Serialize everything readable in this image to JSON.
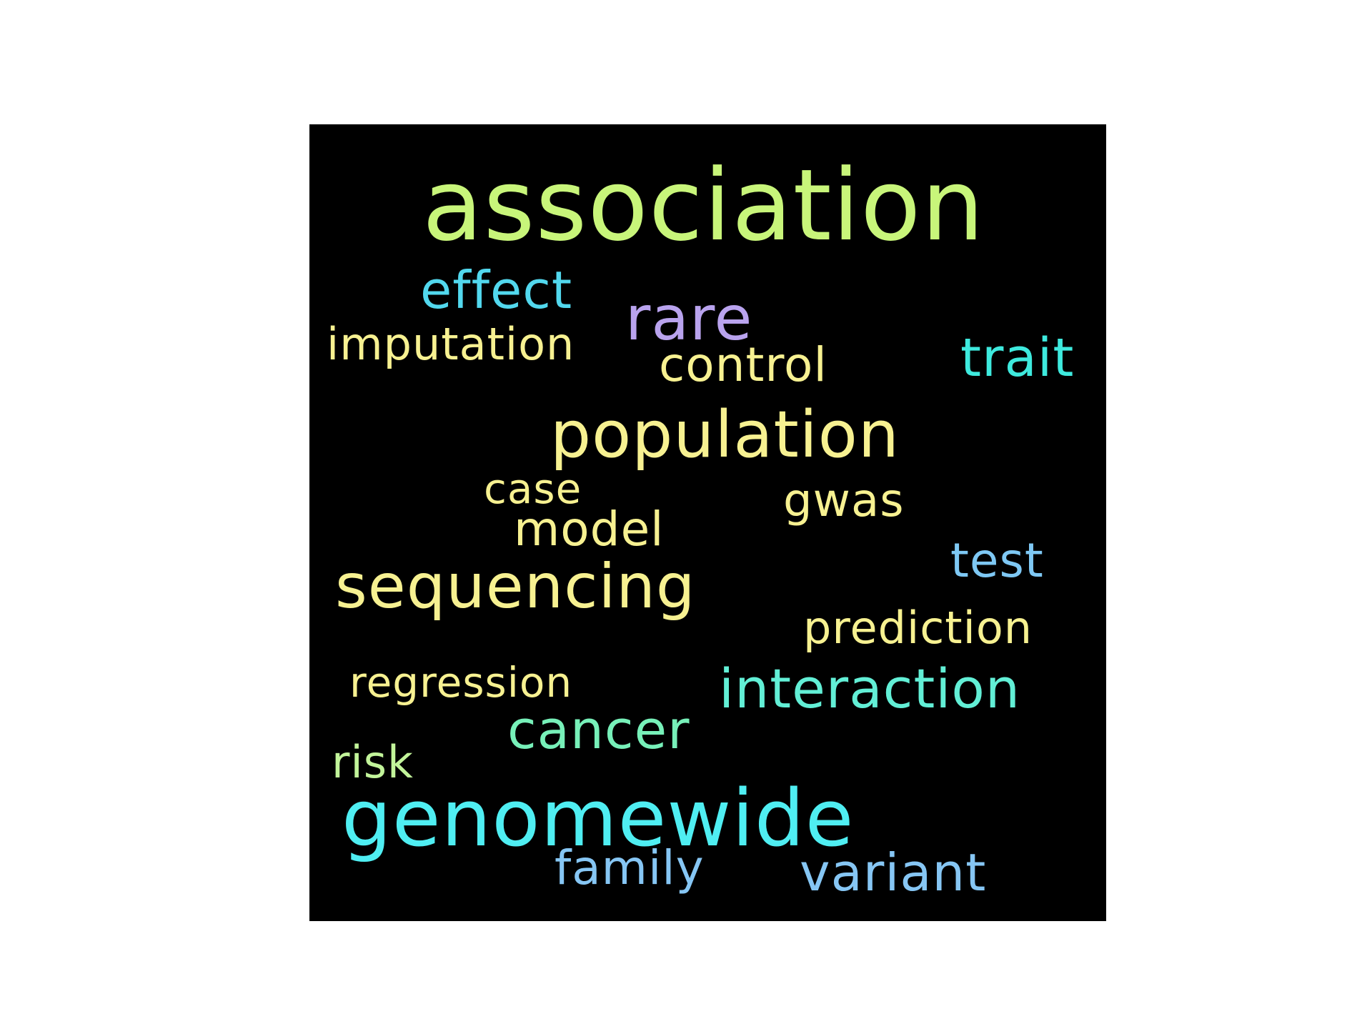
{
  "wordcloud": {
    "words": [
      {
        "text": "association",
        "color": "#c8f57a"
      },
      {
        "text": "effect",
        "color": "#52d8ee"
      },
      {
        "text": "rare",
        "color": "#b9a3ee"
      },
      {
        "text": "imputation",
        "color": "#f7f191"
      },
      {
        "text": "control",
        "color": "#f7f191"
      },
      {
        "text": "trait",
        "color": "#3eeade"
      },
      {
        "text": "population",
        "color": "#f7f191"
      },
      {
        "text": "case",
        "color": "#f7f191"
      },
      {
        "text": "gwas",
        "color": "#f7f191"
      },
      {
        "text": "model",
        "color": "#f7f191"
      },
      {
        "text": "test",
        "color": "#7ec8f4"
      },
      {
        "text": "sequencing",
        "color": "#f7f191"
      },
      {
        "text": "prediction",
        "color": "#f7f191"
      },
      {
        "text": "regression",
        "color": "#f7f191"
      },
      {
        "text": "interaction",
        "color": "#62efd6"
      },
      {
        "text": "cancer",
        "color": "#77f0b9"
      },
      {
        "text": "risk",
        "color": "#c2f49a"
      },
      {
        "text": "genomewide",
        "color": "#4feef2"
      },
      {
        "text": "family",
        "color": "#86c6f4"
      },
      {
        "text": "variant",
        "color": "#86c6f4"
      }
    ]
  }
}
